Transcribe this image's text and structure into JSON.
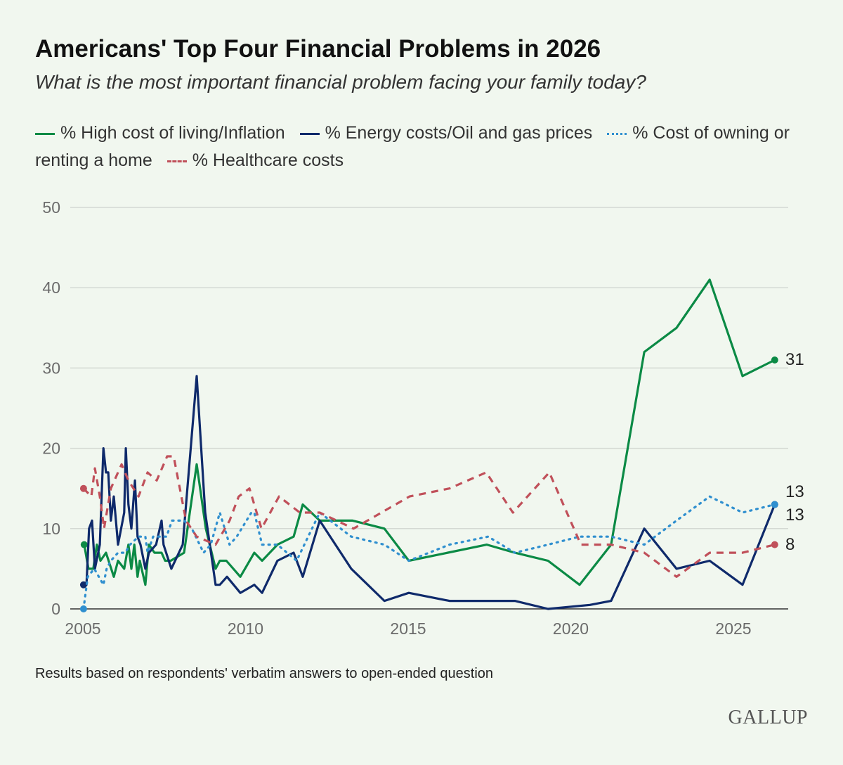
{
  "chart_data": {
    "type": "line",
    "title": "Americans' Top Four Financial Problems in 2026",
    "subtitle": "What is the most important financial problem facing your family today?",
    "xlabel": "",
    "ylabel": "",
    "xlim": [
      2005,
      2026.5
    ],
    "ylim": [
      0,
      50
    ],
    "xticks": [
      "2005",
      "2010",
      "2015",
      "2020",
      "2025"
    ],
    "yticks": [
      "0",
      "10",
      "20",
      "30",
      "40",
      "50"
    ],
    "grid": true,
    "legend": "top",
    "series": [
      {
        "name": "% High cost of living/Inflation",
        "color": "#0b8a45",
        "style": "solid",
        "end_label": "31",
        "x": [
          2005.04,
          2005.17,
          2005.32,
          2005.43,
          2005.54,
          2005.71,
          2005.95,
          2006.08,
          2006.27,
          2006.4,
          2006.49,
          2006.58,
          2006.68,
          2006.75,
          2006.92,
          2007.03,
          2007.2,
          2007.42,
          2007.53,
          2007.7,
          2008.11,
          2008.5,
          2008.78,
          2009.08,
          2009.21,
          2009.41,
          2009.84,
          2010.27,
          2010.51,
          2010.98,
          2011.48,
          2011.76,
          2012.28,
          2013.29,
          2014.27,
          2015.02,
          2017.42,
          2018.28,
          2019.3,
          2020.27,
          2021.24,
          2022.26,
          2023.25,
          2024.27,
          2025.28,
          2026.27
        ],
        "y": [
          8,
          5,
          5,
          8,
          6,
          7,
          4,
          6,
          5,
          8,
          5,
          8,
          4,
          6,
          3,
          8,
          7,
          7,
          6,
          6,
          7,
          18,
          10,
          5,
          6,
          6,
          4,
          7,
          6,
          8,
          9,
          13,
          11,
          11,
          10,
          6,
          8,
          7,
          6,
          3,
          8,
          32,
          35,
          41,
          29,
          31
        ]
      },
      {
        "name": "% Energy costs/Oil and gas prices",
        "color": "#0f2a6b",
        "style": "solid",
        "end_label": "13",
        "x": [
          2005.02,
          2005.11,
          2005.19,
          2005.28,
          2005.37,
          2005.52,
          2005.63,
          2005.71,
          2005.78,
          2005.86,
          2005.95,
          2006.08,
          2006.27,
          2006.32,
          2006.4,
          2006.49,
          2006.6,
          2006.68,
          2006.77,
          2006.92,
          2007.03,
          2007.25,
          2007.42,
          2007.48,
          2007.72,
          2008.07,
          2008.5,
          2008.76,
          2009.08,
          2009.21,
          2009.43,
          2009.84,
          2010.27,
          2010.51,
          2010.98,
          2011.48,
          2011.76,
          2012.28,
          2013.25,
          2014.27,
          2015.02,
          2016.27,
          2018.28,
          2019.3,
          2020.59,
          2021.24,
          2022.26,
          2023.25,
          2024.27,
          2025.28,
          2026.27
        ],
        "y": [
          3,
          3,
          10,
          11,
          5,
          8,
          20,
          17,
          17,
          11,
          14,
          8,
          12,
          20,
          13,
          10,
          16,
          9,
          8,
          5,
          7,
          8,
          11,
          8,
          5,
          8,
          29,
          12,
          3,
          3,
          4,
          2,
          3,
          2,
          6,
          7,
          4,
          11,
          5,
          1,
          2,
          1,
          1,
          0,
          0.5,
          1,
          10,
          5,
          6,
          3,
          13
        ]
      },
      {
        "name": "% Cost of owning or renting a home",
        "color": "#2f8fcf",
        "style": "dotted",
        "end_label": "13",
        "x": [
          2005.02,
          2005.15,
          2005.35,
          2005.63,
          2005.73,
          2005.86,
          2006.08,
          2006.3,
          2006.45,
          2006.71,
          2006.92,
          2006.99,
          2007.16,
          2007.35,
          2007.57,
          2007.74,
          2008.11,
          2008.35,
          2008.71,
          2008.93,
          2009.21,
          2009.51,
          2009.73,
          2010.18,
          2010.27,
          2010.51,
          2010.98,
          2011.57,
          2012.28,
          2013.25,
          2014.27,
          2015.02,
          2016.27,
          2017.46,
          2018.28,
          2019.3,
          2020.27,
          2021.24,
          2022.26,
          2023.25,
          2024.27,
          2025.28,
          2026.27
        ],
        "y": [
          0,
          4,
          5,
          3,
          5,
          6,
          7,
          7,
          8,
          9,
          9,
          7,
          9,
          9,
          9,
          11,
          11,
          10,
          7,
          8,
          12,
          8,
          9,
          12,
          12,
          8,
          8,
          6,
          12,
          9,
          8,
          6,
          8,
          9,
          7,
          8,
          9,
          9,
          8,
          11,
          14,
          12,
          13
        ]
      },
      {
        "name": "% Healthcare costs",
        "color": "#c0505a",
        "style": "dashed",
        "end_label": "8",
        "x": [
          2005.02,
          2005.26,
          2005.37,
          2005.52,
          2005.65,
          2005.86,
          2006.19,
          2006.4,
          2006.71,
          2006.99,
          2007.27,
          2007.59,
          2007.79,
          2008.17,
          2008.5,
          2009.08,
          2009.51,
          2009.79,
          2010.12,
          2010.49,
          2011.03,
          2011.67,
          2012.28,
          2013.32,
          2015.04,
          2016.27,
          2017.4,
          2018.22,
          2019.34,
          2020.31,
          2021.24,
          2022.26,
          2023.25,
          2024.27,
          2025.28,
          2026.27
        ],
        "y": [
          15,
          14,
          17.5,
          14,
          10,
          15,
          18,
          16,
          14,
          17,
          16,
          19,
          19,
          11,
          9,
          8,
          11,
          14,
          15,
          10,
          14,
          12,
          12,
          10,
          14,
          15,
          17,
          12,
          17,
          8,
          8,
          7,
          4,
          7,
          7,
          8
        ]
      }
    ],
    "note": "Results based on respondents' verbatim answers to open-ended question"
  },
  "brand": "GALLUP"
}
